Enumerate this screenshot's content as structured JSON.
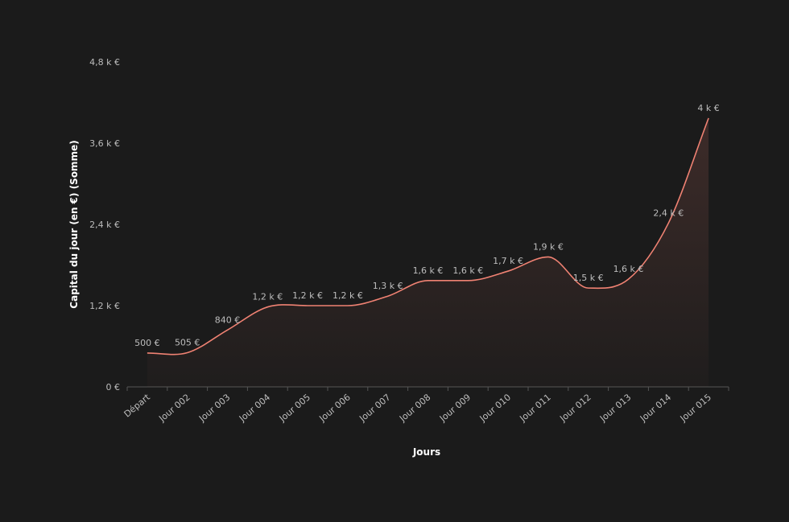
{
  "chart_data": {
    "type": "area",
    "x_label": "Jours",
    "y_label": "Capital du jour (en €) (Somme)",
    "categories": [
      "Départ",
      "Jour 002",
      "Jour 003",
      "Jour 004",
      "Jour 005",
      "Jour 006",
      "Jour 007",
      "Jour 008",
      "Jour 009",
      "Jour 010",
      "Jour 011",
      "Jour 012",
      "Jour 013",
      "Jour 014",
      "Jour 015"
    ],
    "values": [
      500,
      505,
      840,
      1180,
      1200,
      1200,
      1340,
      1570,
      1570,
      1710,
      1920,
      1460,
      1590,
      2420,
      3970
    ],
    "value_labels": [
      "500 €",
      "505 €",
      "840 €",
      "1,2 k €",
      "1,2 k €",
      "1,2 k €",
      "1,3 k €",
      "1,6 k €",
      "1,6 k €",
      "1,7 k €",
      "1,9 k €",
      "1,5 k €",
      "1,6 k €",
      "2,4 k €",
      "4 k €"
    ],
    "color": "#f08273",
    "ylim": [
      0,
      4800
    ],
    "yticks": [
      {
        "value": 0,
        "label": "0 €"
      },
      {
        "value": 1200,
        "label": "1,2 k €"
      },
      {
        "value": 2400,
        "label": "2,4 k €"
      },
      {
        "value": 3600,
        "label": "3,6 k €"
      },
      {
        "value": 4800,
        "label": "4,8 k €"
      }
    ],
    "grid": false
  }
}
